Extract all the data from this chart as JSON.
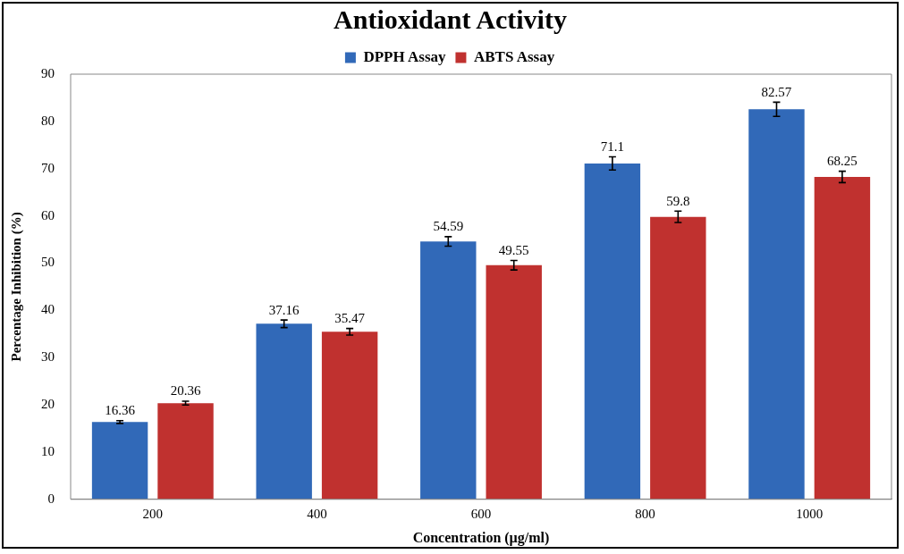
{
  "chart_data": {
    "type": "bar",
    "title": "Antioxidant Activity",
    "xlabel": "Concentration (µg/ml)",
    "ylabel": "Percentage Inhibition (%)",
    "categories": [
      "200",
      "400",
      "600",
      "800",
      "1000"
    ],
    "series": [
      {
        "name": "DPPH Assay",
        "color": "#3169b8",
        "values": [
          16.36,
          37.16,
          54.59,
          71.1,
          82.57
        ],
        "errors": [
          0.3,
          0.8,
          1.0,
          1.4,
          1.5
        ]
      },
      {
        "name": "ABTS Assay",
        "color": "#c0312f",
        "values": [
          20.36,
          35.47,
          49.55,
          59.8,
          68.25
        ],
        "errors": [
          0.4,
          0.7,
          1.0,
          1.2,
          1.2
        ]
      }
    ],
    "ylim": [
      0,
      90
    ],
    "yticks": [
      0,
      10,
      20,
      30,
      40,
      50,
      60,
      70,
      80,
      90
    ],
    "grid": false,
    "legend": "top",
    "data_labels": true
  }
}
